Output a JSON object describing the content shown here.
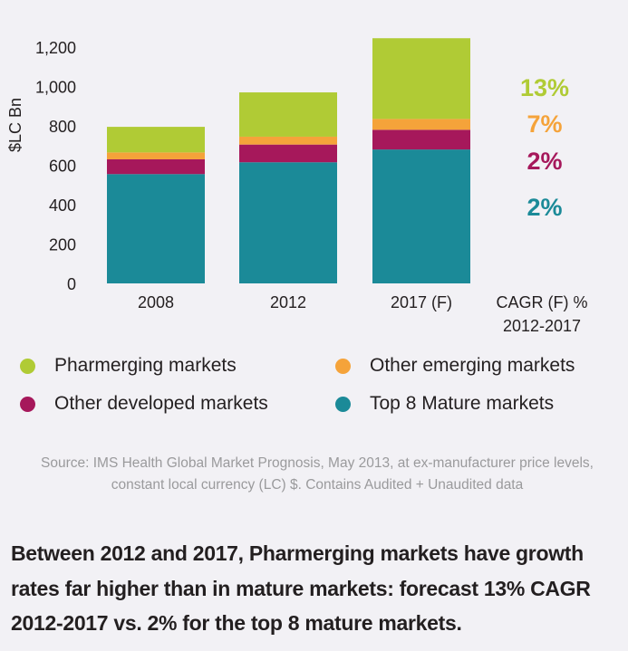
{
  "chart_data": {
    "type": "bar",
    "stacked": true,
    "title": "",
    "xlabel": "",
    "ylabel": "$LC Bn",
    "ylim": [
      0,
      1200
    ],
    "yticks": [
      0,
      200,
      400,
      600,
      800,
      "1,000",
      "1,200"
    ],
    "categories": [
      "2008",
      "2012",
      "2017 (F)"
    ],
    "series": [
      {
        "name": "Top 8 Mature markets",
        "color": "#1b8a98",
        "values": [
          555,
          615,
          680
        ]
      },
      {
        "name": "Other developed markets",
        "color": "#a6185b",
        "values": [
          75,
          90,
          100
        ]
      },
      {
        "name": "Other emerging markets",
        "color": "#f5a33a",
        "values": [
          35,
          40,
          55
        ]
      },
      {
        "name": "Pharmerging markets",
        "color": "#b0cb35",
        "values": [
          130,
          225,
          410
        ]
      }
    ],
    "cagr_header": [
      "CAGR (F) %",
      "2012-2017"
    ],
    "cagr_labels": [
      {
        "series": "Pharmerging markets",
        "text": "13%",
        "color": "#b0cb35"
      },
      {
        "series": "Other emerging markets",
        "text": "7%",
        "color": "#f5a33a"
      },
      {
        "series": "Other developed markets",
        "text": "2%",
        "color": "#a6185b"
      },
      {
        "series": "Top 8 Mature markets",
        "text": "2%",
        "color": "#1b8a98"
      }
    ],
    "grid": false
  },
  "legend": [
    {
      "label": "Pharmerging markets",
      "color": "#b0cb35"
    },
    {
      "label": "Other emerging markets",
      "color": "#f5a33a"
    },
    {
      "label": "Other developed markets",
      "color": "#a6185b"
    },
    {
      "label": "Top 8 Mature markets",
      "color": "#1b8a98"
    }
  ],
  "source": "Source: IMS Health Global Market Prognosis, May 2013, at ex-manufacturer price levels, constant local currency (LC) $. Contains Audited + Unaudited data",
  "headline": "Between 2012 and 2017, Pharmerging markets have growth rates far higher than in mature markets: forecast 13% CAGR 2012-2017 vs. 2% for the top 8 mature markets."
}
